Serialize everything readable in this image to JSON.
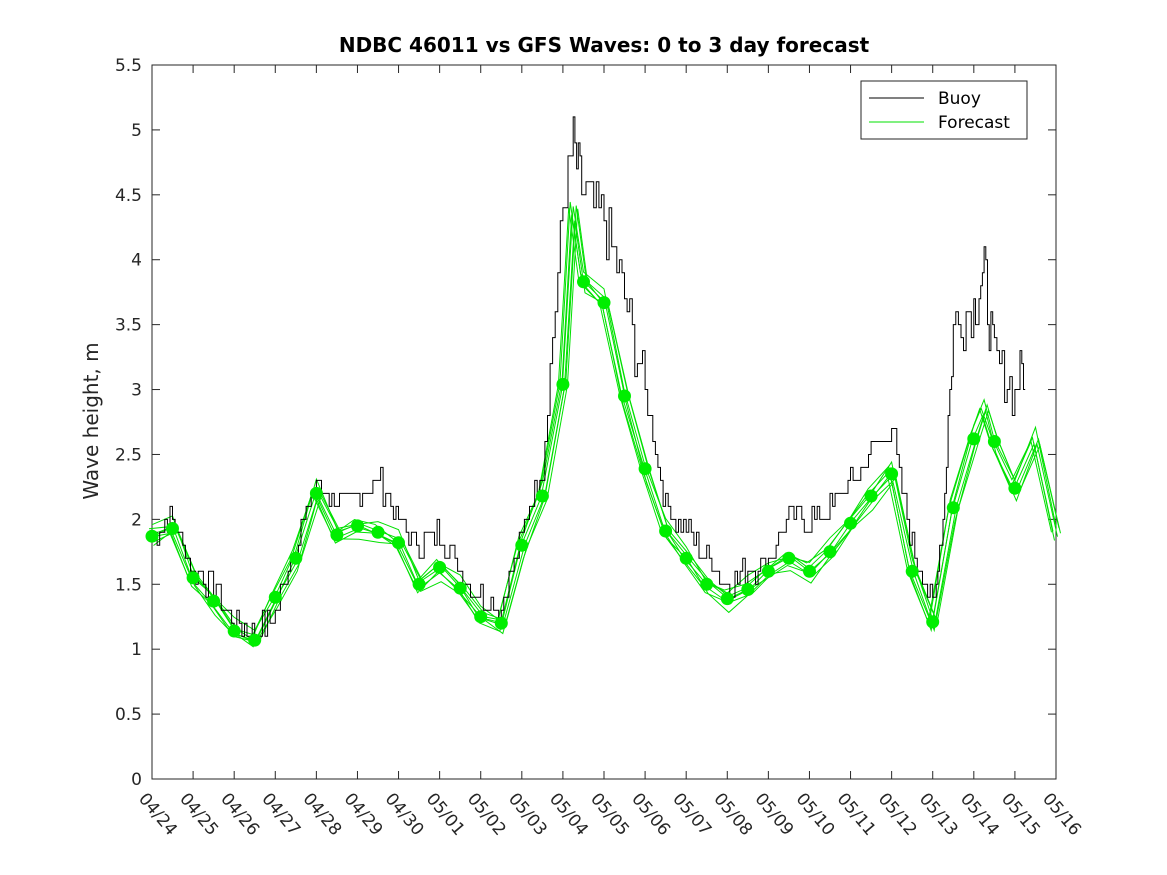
{
  "chart_data": {
    "type": "line",
    "title": "NDBC 46011 vs GFS Waves: 0 to 3 day forecast",
    "xlabel": "",
    "ylabel": "Wave height, m",
    "xlim": [
      "04/24",
      "05/16"
    ],
    "ylim": [
      0,
      5.5
    ],
    "grid": false,
    "legend_position": "top-right",
    "x_ticks": [
      "04/24",
      "04/25",
      "04/26",
      "04/27",
      "04/28",
      "04/29",
      "04/30",
      "05/01",
      "05/02",
      "05/03",
      "05/04",
      "05/05",
      "05/06",
      "05/07",
      "05/08",
      "05/09",
      "05/10",
      "05/11",
      "05/12",
      "05/13",
      "05/14",
      "05/15",
      "05/16"
    ],
    "y_ticks": [
      "0",
      "0.5",
      "1",
      "1.5",
      "2",
      "2.5",
      "3",
      "3.5",
      "4",
      "4.5",
      "5",
      "5.5"
    ],
    "colors": {
      "buoy": "#000000",
      "forecast": "#00e000",
      "marker": "#00ee00"
    },
    "series": [
      {
        "name": "Buoy",
        "x": [
          "04/24",
          "04/24 12:00",
          "04/25",
          "04/25 12:00",
          "04/26",
          "04/26 12:00",
          "04/27",
          "04/27 12:00",
          "04/28",
          "04/28 12:00",
          "04/29",
          "04/29 12:00",
          "04/30",
          "04/30 12:00",
          "05/01",
          "05/01 12:00",
          "05/02",
          "05/02 12:00",
          "05/03",
          "05/03 12:00",
          "05/04",
          "05/04 06:00",
          "05/04 12:00",
          "05/05",
          "05/05 12:00",
          "05/06",
          "05/06 12:00",
          "05/07",
          "05/07 12:00",
          "05/08",
          "05/08 12:00",
          "05/09",
          "05/09 12:00",
          "05/10",
          "05/10 12:00",
          "05/11",
          "05/11 12:00",
          "05/12",
          "05/12 12:00",
          "05/13",
          "05/13 06:00",
          "05/13 12:00",
          "05/14",
          "05/14 06:00",
          "05/14 12:00",
          "05/15",
          "05/15 06:00"
        ],
        "y": [
          1.9,
          2.0,
          1.6,
          1.5,
          1.2,
          1.1,
          1.3,
          1.8,
          2.3,
          2.1,
          2.2,
          2.3,
          2.0,
          1.8,
          1.9,
          1.6,
          1.4,
          1.3,
          1.9,
          2.4,
          4.4,
          4.9,
          4.5,
          4.3,
          3.7,
          3.0,
          2.1,
          1.9,
          1.7,
          1.5,
          1.6,
          1.7,
          2.0,
          2.0,
          2.1,
          2.3,
          2.5,
          2.7,
          1.8,
          1.3,
          2.0,
          3.5,
          3.6,
          3.9,
          3.2,
          3.0,
          3.2
        ]
      },
      {
        "name": "Forecast",
        "x": [
          "04/24",
          "04/24 12:00",
          "04/25",
          "04/25 12:00",
          "04/26",
          "04/26 12:00",
          "04/27",
          "04/27 12:00",
          "04/28",
          "04/28 12:00",
          "04/29",
          "04/29 12:00",
          "04/30",
          "04/30 12:00",
          "05/01",
          "05/01 12:00",
          "05/02",
          "05/02 12:00",
          "05/03",
          "05/03 12:00",
          "05/04",
          "05/04 06:00",
          "05/04 12:00",
          "05/05",
          "05/05 12:00",
          "05/06",
          "05/06 12:00",
          "05/07",
          "05/07 12:00",
          "05/08",
          "05/08 12:00",
          "05/09",
          "05/09 12:00",
          "05/10",
          "05/10 12:00",
          "05/11",
          "05/11 12:00",
          "05/12",
          "05/12 12:00",
          "05/13",
          "05/13 12:00",
          "05/14",
          "05/14 06:00",
          "05/14 12:00",
          "05/15",
          "05/15 12:00",
          "05/16"
        ],
        "y": [
          1.87,
          1.93,
          1.55,
          1.37,
          1.14,
          1.07,
          1.4,
          1.7,
          2.2,
          1.88,
          1.95,
          1.9,
          1.82,
          1.5,
          1.63,
          1.47,
          1.25,
          1.2,
          1.8,
          2.18,
          3.04,
          4.4,
          3.83,
          3.67,
          2.95,
          2.39,
          1.91,
          1.7,
          1.5,
          1.39,
          1.46,
          1.6,
          1.7,
          1.6,
          1.75,
          1.97,
          2.18,
          2.35,
          1.6,
          1.21,
          2.09,
          2.62,
          2.85,
          2.6,
          2.24,
          2.6,
          1.9
        ]
      },
      {
        "name": "Forecast markers",
        "x": [
          "04/24",
          "04/24 12:00",
          "04/25",
          "04/25 12:00",
          "04/26",
          "04/26 12:00",
          "04/27",
          "04/27 12:00",
          "04/28",
          "04/28 12:00",
          "04/29",
          "04/29 12:00",
          "04/30",
          "04/30 12:00",
          "05/01",
          "05/01 12:00",
          "05/02",
          "05/02 12:00",
          "05/03",
          "05/03 12:00",
          "05/04",
          "05/04 12:00",
          "05/05",
          "05/05 12:00",
          "05/06",
          "05/06 12:00",
          "05/07",
          "05/07 12:00",
          "05/08",
          "05/08 12:00",
          "05/09",
          "05/09 12:00",
          "05/10",
          "05/10 12:00",
          "05/11",
          "05/11 12:00",
          "05/12",
          "05/12 12:00",
          "05/13",
          "05/13 12:00",
          "05/14",
          "05/14 12:00",
          "05/15"
        ],
        "y": [
          1.87,
          1.93,
          1.55,
          1.37,
          1.14,
          1.07,
          1.4,
          1.7,
          2.2,
          1.88,
          1.95,
          1.9,
          1.82,
          1.5,
          1.63,
          1.47,
          1.25,
          1.2,
          1.8,
          2.18,
          3.04,
          3.83,
          3.67,
          2.95,
          2.39,
          1.91,
          1.7,
          1.5,
          1.39,
          1.46,
          1.6,
          1.7,
          1.6,
          1.75,
          1.97,
          2.18,
          2.35,
          1.6,
          1.21,
          2.09,
          2.62,
          2.6,
          2.24
        ]
      }
    ],
    "legend": [
      {
        "label": "Buoy",
        "color": "#000000"
      },
      {
        "label": "Forecast",
        "color": "#00e000"
      }
    ]
  }
}
